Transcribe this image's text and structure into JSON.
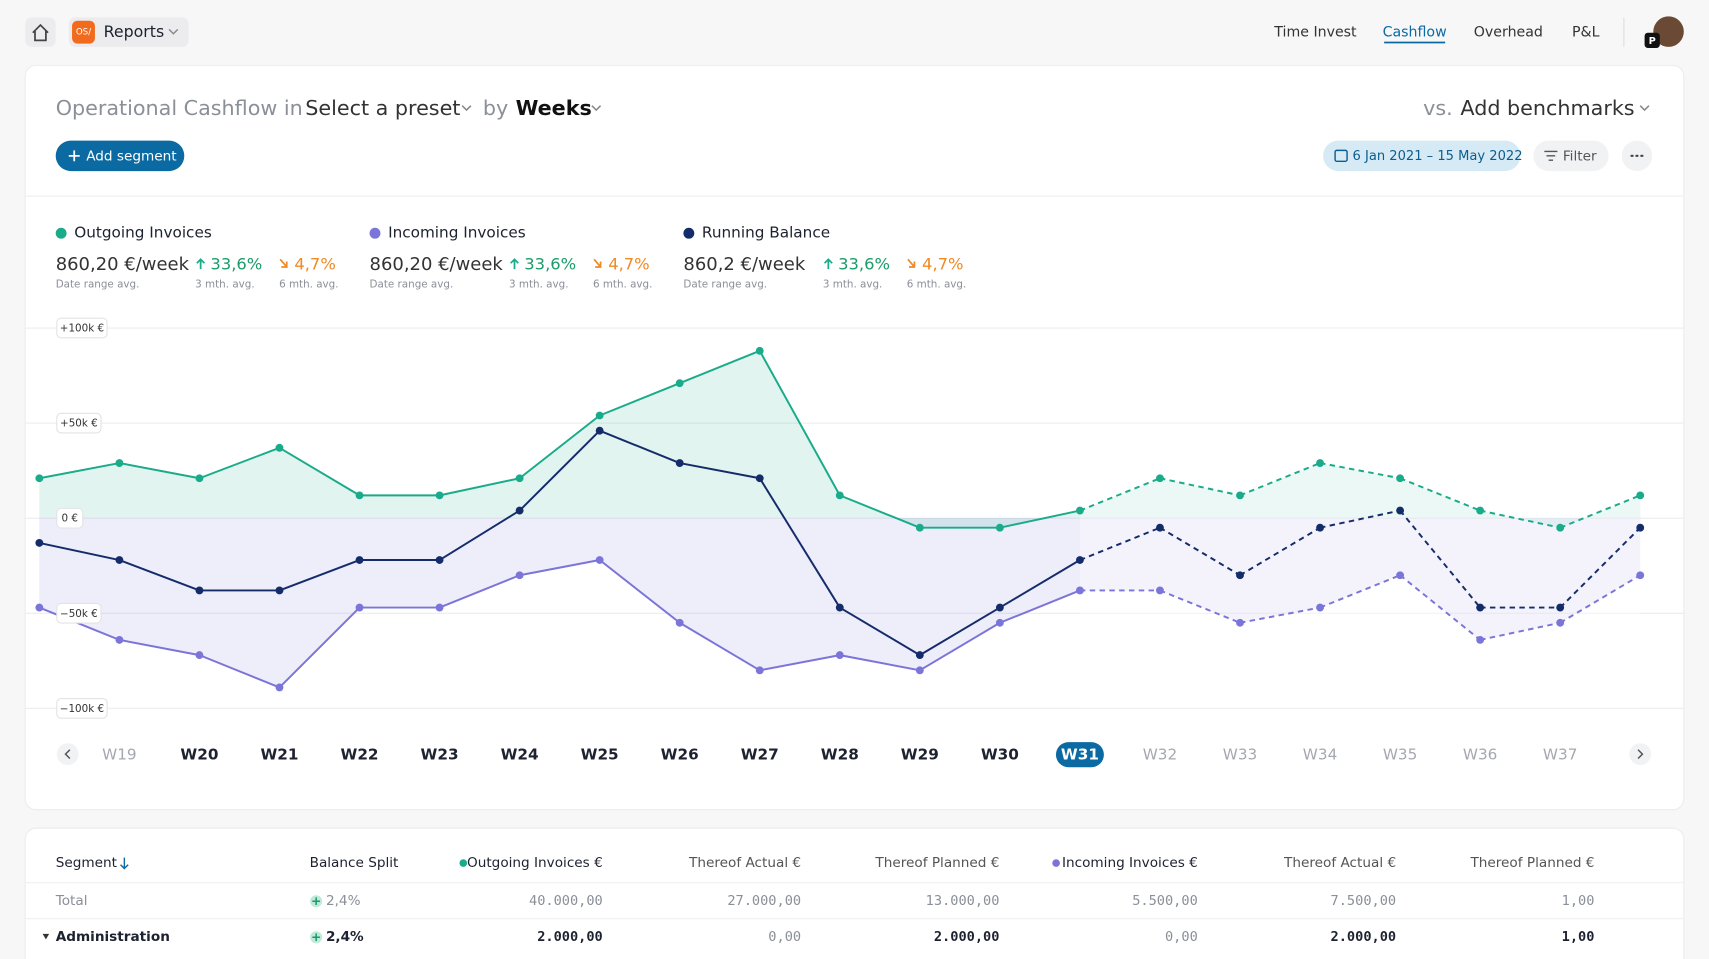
{
  "nav": {
    "badge": "OS/",
    "app": "Reports",
    "tabs": [
      "Time Invest",
      "Cashflow",
      "Overhead",
      "P&L"
    ],
    "active_tab": 1,
    "avatar_badge": "P"
  },
  "header": {
    "title_prefix": "Operational Cashflow in",
    "preset": "Select a preset",
    "by": "by",
    "period": "Weeks",
    "vs": "vs.",
    "benchmarks": "Add benchmarks",
    "add_segment": "Add segment",
    "date_range": "6 Jan 2021 – 15 May 2022",
    "filter": "Filter"
  },
  "summary": [
    {
      "avg": "860,20 €/week",
      "avg_label": "Date range avg.",
      "m3": "33,6%",
      "m3_label": "3 mth. avg.",
      "m6": "4,7%",
      "m6_label": "6 mth. avg."
    },
    {
      "avg": "860,20 €/week",
      "avg_label": "Date range avg.",
      "m3": "33,6%",
      "m3_label": "3 mth. avg.",
      "m6": "4,7%",
      "m6_label": "6 mth. avg."
    },
    {
      "avg": "860,2 €/week",
      "avg_label": "Date range avg.",
      "m3": "33,6%",
      "m3_label": "3 mth. avg.",
      "m6": "4,7%",
      "m6_label": "6 mth. avg."
    }
  ],
  "chart_data": {
    "type": "line",
    "categories": [
      null,
      "W19",
      "W20",
      "W21",
      "W22",
      "W23",
      "W24",
      "W25",
      "W26",
      "W27",
      "W28",
      "W29",
      "W30",
      "W31",
      "W32",
      "W33",
      "W34",
      "W35",
      "W36",
      "W37",
      null
    ],
    "selected_index": 13,
    "series": [
      {
        "name": "Outgoing Invoices",
        "color": "#1aab8a",
        "values": [
          21000,
          29000,
          21000,
          37000,
          12000,
          12000,
          21000,
          54000,
          71000,
          88000,
          12000,
          -5000,
          -5000,
          4000,
          21000,
          12000,
          29000,
          21000,
          4000,
          -5000,
          12000
        ]
      },
      {
        "name": "Incoming Invoices",
        "color": "#7b74d9",
        "values": [
          -47000,
          -64000,
          -72000,
          -89000,
          -47000,
          -47000,
          -30000,
          -22000,
          -55000,
          -80000,
          -72000,
          -80000,
          -55000,
          -38000,
          -38000,
          -55000,
          -47000,
          -30000,
          -64000,
          -55000,
          -30000
        ]
      },
      {
        "name": "Running Balance",
        "color": "#152c6b",
        "values": [
          -13000,
          -22000,
          -38000,
          -38000,
          -22000,
          -22000,
          4000,
          46000,
          29000,
          21000,
          -47000,
          -72000,
          -47000,
          -22000,
          -5000,
          -30000,
          -5000,
          4000,
          -47000,
          -47000,
          -5000
        ]
      }
    ],
    "ylim": [
      -100000,
      100000
    ],
    "yticks": [
      {
        "value": 100000,
        "label": "+100k €"
      },
      {
        "value": 50000,
        "label": "+50k €"
      },
      {
        "value": 0,
        "label": "0 €"
      },
      {
        "value": -50000,
        "label": "−50k €"
      },
      {
        "value": -100000,
        "label": "−100k €"
      }
    ],
    "grid": true
  },
  "table": {
    "columns": [
      "Segment",
      "Balance Split",
      "Outgoing Invoices €",
      "Thereof Actual €",
      "Thereof Planned €",
      "Incoming Invoices €",
      "Thereof Actual €",
      "Thereof Planned €"
    ],
    "rows": [
      [
        "Total",
        "2,4%",
        "40.000,00",
        "27.000,00",
        "13.000,00",
        "5.500,00",
        "7.500,00",
        "1,00"
      ],
      [
        "Administration",
        "2,4%",
        "2.000,00",
        "0,00",
        "2.000,00",
        "0,00",
        "2.000,00",
        "1,00"
      ]
    ]
  }
}
